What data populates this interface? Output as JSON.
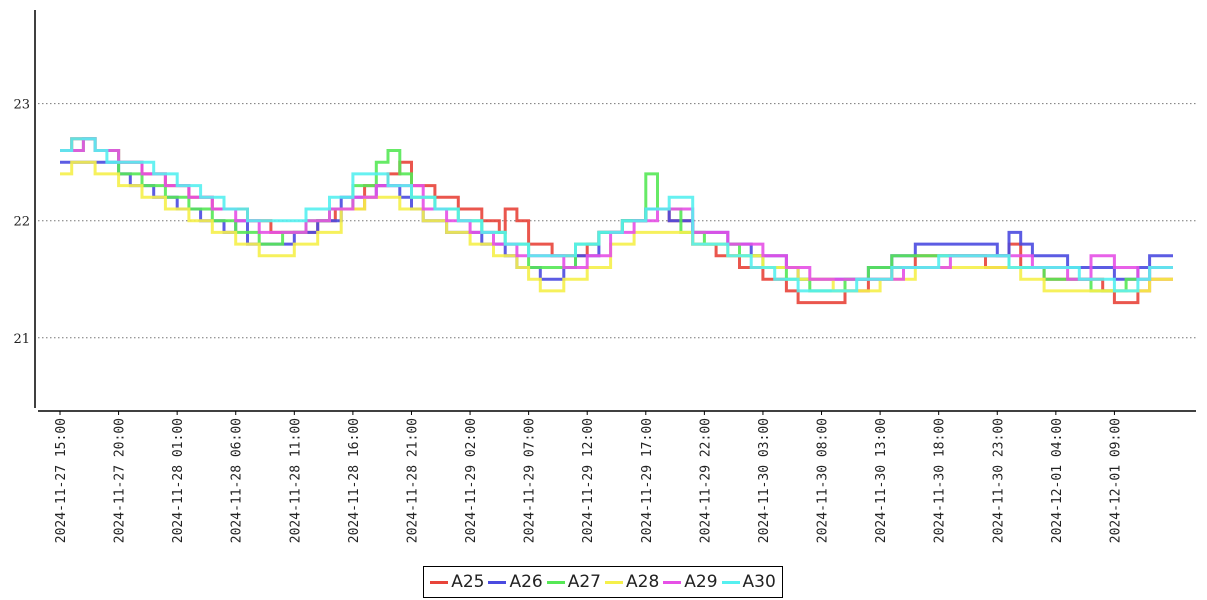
{
  "chart_data": {
    "type": "line",
    "title": "",
    "xlabel": "",
    "ylabel": "",
    "ylim": [
      20.4,
      23.8
    ],
    "yticks": [
      21,
      22,
      23
    ],
    "grid": "horizontal-dotted",
    "legend_placement": "bottom-center",
    "x_tick_labels": [
      "2024-11-27 15:00",
      "2024-11-27 20:00",
      "2024-11-28 01:00",
      "2024-11-28 06:00",
      "2024-11-28 11:00",
      "2024-11-28 16:00",
      "2024-11-28 21:00",
      "2024-11-29 02:00",
      "2024-11-29 07:00",
      "2024-11-29 12:00",
      "2024-11-29 17:00",
      "2024-11-29 22:00",
      "2024-11-30 03:00",
      "2024-11-30 08:00",
      "2024-11-30 13:00",
      "2024-11-30 18:00",
      "2024-11-30 23:00",
      "2024-12-01 04:00",
      "2024-12-01 09:00"
    ],
    "x_range": [
      "2024-11-27 15:00",
      "2024-12-01 14:00"
    ],
    "series": [
      {
        "name": "A25",
        "color": "#e8443a",
        "step": true,
        "x": [
          "2024-11-27 15:00",
          "2024-11-27 16:00",
          "2024-11-27 18:00",
          "2024-11-27 20:00",
          "2024-11-27 22:00",
          "2024-11-28 00:00",
          "2024-11-28 02:00",
          "2024-11-28 04:00",
          "2024-11-28 05:00",
          "2024-11-28 07:00",
          "2024-11-28 09:00",
          "2024-11-28 11:00",
          "2024-11-28 13:00",
          "2024-11-28 14:30",
          "2024-11-28 17:00",
          "2024-11-28 19:00",
          "2024-11-28 20:00",
          "2024-11-28 21:00",
          "2024-11-28 23:00",
          "2024-11-29 01:00",
          "2024-11-29 03:00",
          "2024-11-29 04:30",
          "2024-11-29 05:00",
          "2024-11-29 06:00",
          "2024-11-29 07:00",
          "2024-11-29 09:00",
          "2024-11-29 11:00",
          "2024-11-29 12:00",
          "2024-11-29 13:00",
          "2024-11-29 15:00",
          "2024-11-29 17:00",
          "2024-11-29 19:00",
          "2024-11-29 21:00",
          "2024-11-29 23:00",
          "2024-11-30 01:00",
          "2024-11-30 03:00",
          "2024-11-30 05:00",
          "2024-11-30 06:00",
          "2024-11-30 08:00",
          "2024-11-30 10:00",
          "2024-11-30 12:00",
          "2024-11-30 14:00",
          "2024-11-30 16:00",
          "2024-11-30 19:00",
          "2024-11-30 22:00",
          "2024-12-01 00:00",
          "2024-12-01 01:00",
          "2024-12-01 03:00",
          "2024-12-01 04:00",
          "2024-12-01 08:00",
          "2024-12-01 09:00",
          "2024-12-01 11:00",
          "2024-12-01 12:00"
        ],
        "y": [
          22.6,
          22.7,
          22.6,
          22.5,
          22.4,
          22.3,
          22.2,
          22.1,
          22.1,
          22.0,
          21.9,
          21.9,
          22.0,
          22.1,
          22.3,
          22.4,
          22.5,
          22.3,
          22.2,
          22.1,
          22.0,
          21.9,
          22.1,
          22.0,
          21.8,
          21.7,
          21.7,
          21.8,
          21.9,
          22.0,
          22.1,
          22.0,
          21.8,
          21.7,
          21.6,
          21.5,
          21.4,
          21.3,
          21.3,
          21.4,
          21.5,
          21.6,
          21.7,
          21.7,
          21.6,
          21.8,
          21.6,
          21.5,
          21.5,
          21.4,
          21.3,
          21.4,
          21.5
        ]
      },
      {
        "name": "A26",
        "color": "#4a4ae0",
        "step": true,
        "x": [
          "2024-11-27 15:00",
          "2024-11-27 18:00",
          "2024-11-27 20:00",
          "2024-11-27 21:00",
          "2024-11-27 23:00",
          "2024-11-28 01:00",
          "2024-11-28 03:00",
          "2024-11-28 05:00",
          "2024-11-28 06:00",
          "2024-11-28 07:00",
          "2024-11-28 09:00",
          "2024-11-28 11:00",
          "2024-11-28 13:00",
          "2024-11-28 15:00",
          "2024-11-28 18:00",
          "2024-11-28 20:00",
          "2024-11-28 21:00",
          "2024-11-28 22:00",
          "2024-11-29 00:00",
          "2024-11-29 03:00",
          "2024-11-29 05:00",
          "2024-11-29 06:00",
          "2024-11-29 08:00",
          "2024-11-29 10:00",
          "2024-11-29 11:00",
          "2024-11-29 13:00",
          "2024-11-29 15:00",
          "2024-11-29 17:00",
          "2024-11-29 19:00",
          "2024-11-29 21:00",
          "2024-11-30 00:00",
          "2024-11-30 02:00",
          "2024-11-30 05:00",
          "2024-11-30 06:00",
          "2024-11-30 09:00",
          "2024-11-30 12:00",
          "2024-11-30 14:00",
          "2024-11-30 16:00",
          "2024-11-30 20:00",
          "2024-11-30 23:00",
          "2024-12-01 00:00",
          "2024-12-01 01:00",
          "2024-12-01 02:00",
          "2024-12-01 05:00",
          "2024-12-01 09:00",
          "2024-12-01 11:00",
          "2024-12-01 12:00"
        ],
        "y": [
          22.5,
          22.5,
          22.4,
          22.3,
          22.2,
          22.1,
          22.0,
          21.9,
          22.0,
          21.8,
          21.8,
          21.9,
          22.0,
          22.2,
          22.3,
          22.2,
          22.1,
          22.0,
          21.9,
          21.8,
          21.7,
          21.6,
          21.5,
          21.6,
          21.7,
          21.9,
          22.0,
          22.1,
          22.0,
          21.9,
          21.8,
          21.7,
          21.6,
          21.5,
          21.5,
          21.6,
          21.7,
          21.8,
          21.8,
          21.7,
          21.9,
          21.8,
          21.7,
          21.6,
          21.5,
          21.6,
          21.7
        ]
      },
      {
        "name": "A27",
        "color": "#55e855",
        "step": true,
        "x": [
          "2024-11-27 15:00",
          "2024-11-27 17:00",
          "2024-11-27 18:00",
          "2024-11-27 20:00",
          "2024-11-27 22:00",
          "2024-11-28 00:00",
          "2024-11-28 02:00",
          "2024-11-28 04:00",
          "2024-11-28 06:00",
          "2024-11-28 08:00",
          "2024-11-28 10:00",
          "2024-11-28 12:00",
          "2024-11-28 14:00",
          "2024-11-28 16:00",
          "2024-11-28 18:00",
          "2024-11-28 19:00",
          "2024-11-28 20:00",
          "2024-11-28 21:00",
          "2024-11-28 23:00",
          "2024-11-29 01:00",
          "2024-11-29 03:00",
          "2024-11-29 05:00",
          "2024-11-29 07:00",
          "2024-11-29 09:00",
          "2024-11-29 11:00",
          "2024-11-29 13:00",
          "2024-11-29 15:00",
          "2024-11-29 17:00",
          "2024-11-29 18:00",
          "2024-11-29 20:00",
          "2024-11-29 22:00",
          "2024-11-30 01:00",
          "2024-11-30 03:00",
          "2024-11-30 05:00",
          "2024-11-30 07:00",
          "2024-11-30 10:00",
          "2024-11-30 12:00",
          "2024-11-30 14:00",
          "2024-11-30 17:00",
          "2024-11-30 21:00",
          "2024-12-01 00:00",
          "2024-12-01 03:00",
          "2024-12-01 07:00",
          "2024-12-01 10:00",
          "2024-12-01 12:00"
        ],
        "y": [
          22.6,
          22.7,
          22.6,
          22.4,
          22.3,
          22.2,
          22.1,
          22.0,
          21.9,
          21.8,
          21.9,
          22.0,
          22.1,
          22.3,
          22.5,
          22.6,
          22.4,
          22.2,
          22.1,
          22.0,
          21.9,
          21.8,
          21.6,
          21.6,
          21.8,
          21.9,
          22.0,
          22.4,
          22.1,
          21.9,
          21.8,
          21.7,
          21.6,
          21.5,
          21.4,
          21.5,
          21.6,
          21.7,
          21.7,
          21.7,
          21.6,
          21.5,
          21.4,
          21.5,
          21.6
        ]
      },
      {
        "name": "A28",
        "color": "#f5f04a",
        "step": true,
        "x": [
          "2024-11-27 15:00",
          "2024-11-27 16:00",
          "2024-11-27 18:00",
          "2024-11-27 20:00",
          "2024-11-27 22:00",
          "2024-11-28 00:00",
          "2024-11-28 02:00",
          "2024-11-28 04:00",
          "2024-11-28 06:00",
          "2024-11-28 08:00",
          "2024-11-28 11:00",
          "2024-11-28 13:00",
          "2024-11-28 15:00",
          "2024-11-28 17:00",
          "2024-11-28 20:00",
          "2024-11-28 22:00",
          "2024-11-29 00:00",
          "2024-11-29 02:00",
          "2024-11-29 04:00",
          "2024-11-29 06:00",
          "2024-11-29 07:00",
          "2024-11-29 08:00",
          "2024-11-29 10:00",
          "2024-11-29 12:00",
          "2024-11-29 14:00",
          "2024-11-29 16:00",
          "2024-11-29 18:00",
          "2024-11-29 21:00",
          "2024-11-30 00:00",
          "2024-11-30 03:00",
          "2024-11-30 06:00",
          "2024-11-30 09:00",
          "2024-11-30 11:00",
          "2024-11-30 13:00",
          "2024-11-30 16:00",
          "2024-11-30 20:00",
          "2024-11-30 22:00",
          "2024-12-01 01:00",
          "2024-12-01 03:00",
          "2024-12-01 06:00",
          "2024-12-01 09:00",
          "2024-12-01 12:00"
        ],
        "y": [
          22.4,
          22.5,
          22.4,
          22.3,
          22.2,
          22.1,
          22.0,
          21.9,
          21.8,
          21.7,
          21.8,
          21.9,
          22.1,
          22.2,
          22.1,
          22.0,
          21.9,
          21.8,
          21.7,
          21.6,
          21.5,
          21.4,
          21.5,
          21.6,
          21.8,
          21.9,
          21.9,
          21.8,
          21.7,
          21.6,
          21.5,
          21.4,
          21.4,
          21.5,
          21.6,
          21.6,
          21.6,
          21.5,
          21.4,
          21.4,
          21.4,
          21.5
        ]
      },
      {
        "name": "A29",
        "color": "#e650e6",
        "step": true,
        "x": [
          "2024-11-27 15:00",
          "2024-11-27 17:00",
          "2024-11-27 18:00",
          "2024-11-27 20:00",
          "2024-11-27 22:00",
          "2024-11-28 00:00",
          "2024-11-28 02:00",
          "2024-11-28 04:00",
          "2024-11-28 06:00",
          "2024-11-28 08:00",
          "2024-11-28 10:00",
          "2024-11-28 12:00",
          "2024-11-28 14:00",
          "2024-11-28 16:00",
          "2024-11-28 18:00",
          "2024-11-28 20:00",
          "2024-11-28 22:00",
          "2024-11-29 00:00",
          "2024-11-29 02:00",
          "2024-11-29 04:00",
          "2024-11-29 06:00",
          "2024-11-29 08:00",
          "2024-11-29 10:00",
          "2024-11-29 12:00",
          "2024-11-29 14:00",
          "2024-11-29 16:00",
          "2024-11-29 18:00",
          "2024-11-29 21:00",
          "2024-11-30 00:00",
          "2024-11-30 03:00",
          "2024-11-30 05:00",
          "2024-11-30 07:00",
          "2024-11-30 10:00",
          "2024-11-30 12:00",
          "2024-11-30 15:00",
          "2024-11-30 19:00",
          "2024-11-30 23:00",
          "2024-12-01 02:00",
          "2024-12-01 05:00",
          "2024-12-01 07:00",
          "2024-12-01 09:00",
          "2024-12-01 11:00",
          "2024-12-01 12:00"
        ],
        "y": [
          22.6,
          22.7,
          22.6,
          22.5,
          22.4,
          22.3,
          22.2,
          22.1,
          22.0,
          21.9,
          21.9,
          22.0,
          22.1,
          22.2,
          22.3,
          22.3,
          22.1,
          22.0,
          21.9,
          21.8,
          21.7,
          21.7,
          21.6,
          21.7,
          21.9,
          22.0,
          22.1,
          21.9,
          21.8,
          21.7,
          21.6,
          21.5,
          21.5,
          21.5,
          21.6,
          21.7,
          21.7,
          21.6,
          21.5,
          21.7,
          21.6,
          21.5,
          21.6
        ]
      },
      {
        "name": "A30",
        "color": "#55f0f0",
        "step": true,
        "x": [
          "2024-11-27 15:00",
          "2024-11-27 16:00",
          "2024-11-27 18:00",
          "2024-11-27 19:00",
          "2024-11-27 21:00",
          "2024-11-27 23:00",
          "2024-11-28 01:00",
          "2024-11-28 03:00",
          "2024-11-28 05:00",
          "2024-11-28 07:00",
          "2024-11-28 10:00",
          "2024-11-28 12:00",
          "2024-11-28 14:00",
          "2024-11-28 16:00",
          "2024-11-28 19:00",
          "2024-11-28 21:00",
          "2024-11-28 23:00",
          "2024-11-29 01:00",
          "2024-11-29 03:00",
          "2024-11-29 05:00",
          "2024-11-29 07:00",
          "2024-11-29 09:00",
          "2024-11-29 11:00",
          "2024-11-29 13:00",
          "2024-11-29 15:00",
          "2024-11-29 17:00",
          "2024-11-29 19:00",
          "2024-11-29 21:00",
          "2024-11-30 00:00",
          "2024-11-30 02:00",
          "2024-11-30 04:00",
          "2024-11-30 06:00",
          "2024-11-30 09:00",
          "2024-11-30 11:00",
          "2024-11-30 14:00",
          "2024-11-30 18:00",
          "2024-11-30 22:00",
          "2024-12-01 00:00",
          "2024-12-01 03:00",
          "2024-12-01 06:00",
          "2024-12-01 09:00",
          "2024-12-01 11:00",
          "2024-12-01 12:00"
        ],
        "y": [
          22.6,
          22.7,
          22.6,
          22.5,
          22.5,
          22.4,
          22.3,
          22.2,
          22.1,
          22.0,
          22.0,
          22.1,
          22.2,
          22.4,
          22.3,
          22.2,
          22.1,
          22.0,
          21.9,
          21.8,
          21.7,
          21.7,
          21.8,
          21.9,
          22.0,
          22.1,
          22.2,
          21.8,
          21.7,
          21.6,
          21.5,
          21.4,
          21.4,
          21.5,
          21.6,
          21.7,
          21.7,
          21.6,
          21.6,
          21.5,
          21.4,
          21.5,
          21.6
        ]
      }
    ]
  }
}
